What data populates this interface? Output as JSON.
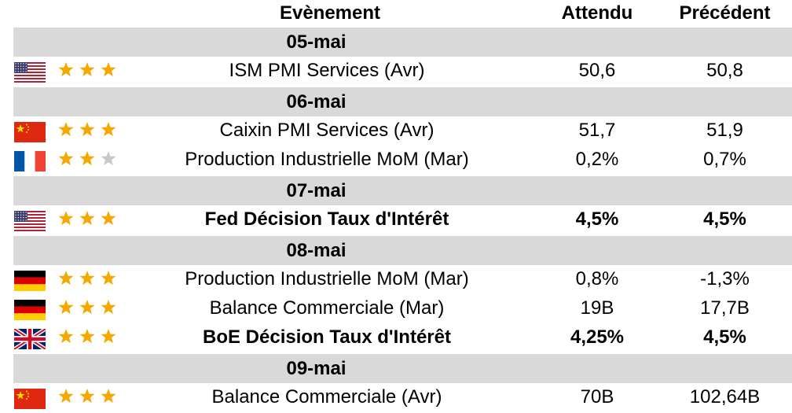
{
  "header": {
    "event": "Evènement",
    "expected": "Attendu",
    "previous": "Précédent"
  },
  "groups": [
    {
      "date": "05-mai",
      "rows": [
        {
          "country": "US",
          "stars": 3,
          "event": "ISM PMI Services (Avr)",
          "expected": "50,6",
          "previous": "50,8",
          "bold": false
        }
      ]
    },
    {
      "date": "06-mai",
      "rows": [
        {
          "country": "CN",
          "stars": 3,
          "event": "Caixin PMI Services (Avr)",
          "expected": "51,7",
          "previous": "51,9",
          "bold": false
        },
        {
          "country": "FR",
          "stars": 2,
          "event": "Production Industrielle MoM (Mar)",
          "expected": "0,2%",
          "previous": "0,7%",
          "bold": false
        }
      ]
    },
    {
      "date": "07-mai",
      "rows": [
        {
          "country": "US",
          "stars": 3,
          "event": "Fed Décision Taux d'Intérêt",
          "expected": "4,5%",
          "previous": "4,5%",
          "bold": true
        }
      ]
    },
    {
      "date": "08-mai",
      "rows": [
        {
          "country": "DE",
          "stars": 3,
          "event": "Production Industrielle MoM (Mar)",
          "expected": "0,8%",
          "previous": "-1,3%",
          "bold": false
        },
        {
          "country": "DE",
          "stars": 3,
          "event": "Balance Commerciale (Mar)",
          "expected": "19B",
          "previous": "17,7B",
          "bold": false
        },
        {
          "country": "GB",
          "stars": 3,
          "event": "BoE Décision Taux d'Intérêt",
          "expected": "4,25%",
          "previous": "4,5%",
          "bold": true
        }
      ]
    },
    {
      "date": "09-mai",
      "rows": [
        {
          "country": "CN",
          "stars": 3,
          "event": "Balance Commerciale (Avr)",
          "expected": "70B",
          "previous": "102,64B",
          "bold": false
        }
      ]
    }
  ],
  "colors": {
    "date_band": "#d9d9d9",
    "star_on": "#f5a800",
    "star_off": "#c8c8c8"
  },
  "icons": {
    "US": "us-flag-icon",
    "CN": "china-flag-icon",
    "FR": "france-flag-icon",
    "DE": "germany-flag-icon",
    "GB": "uk-flag-icon",
    "star": "star-icon"
  }
}
